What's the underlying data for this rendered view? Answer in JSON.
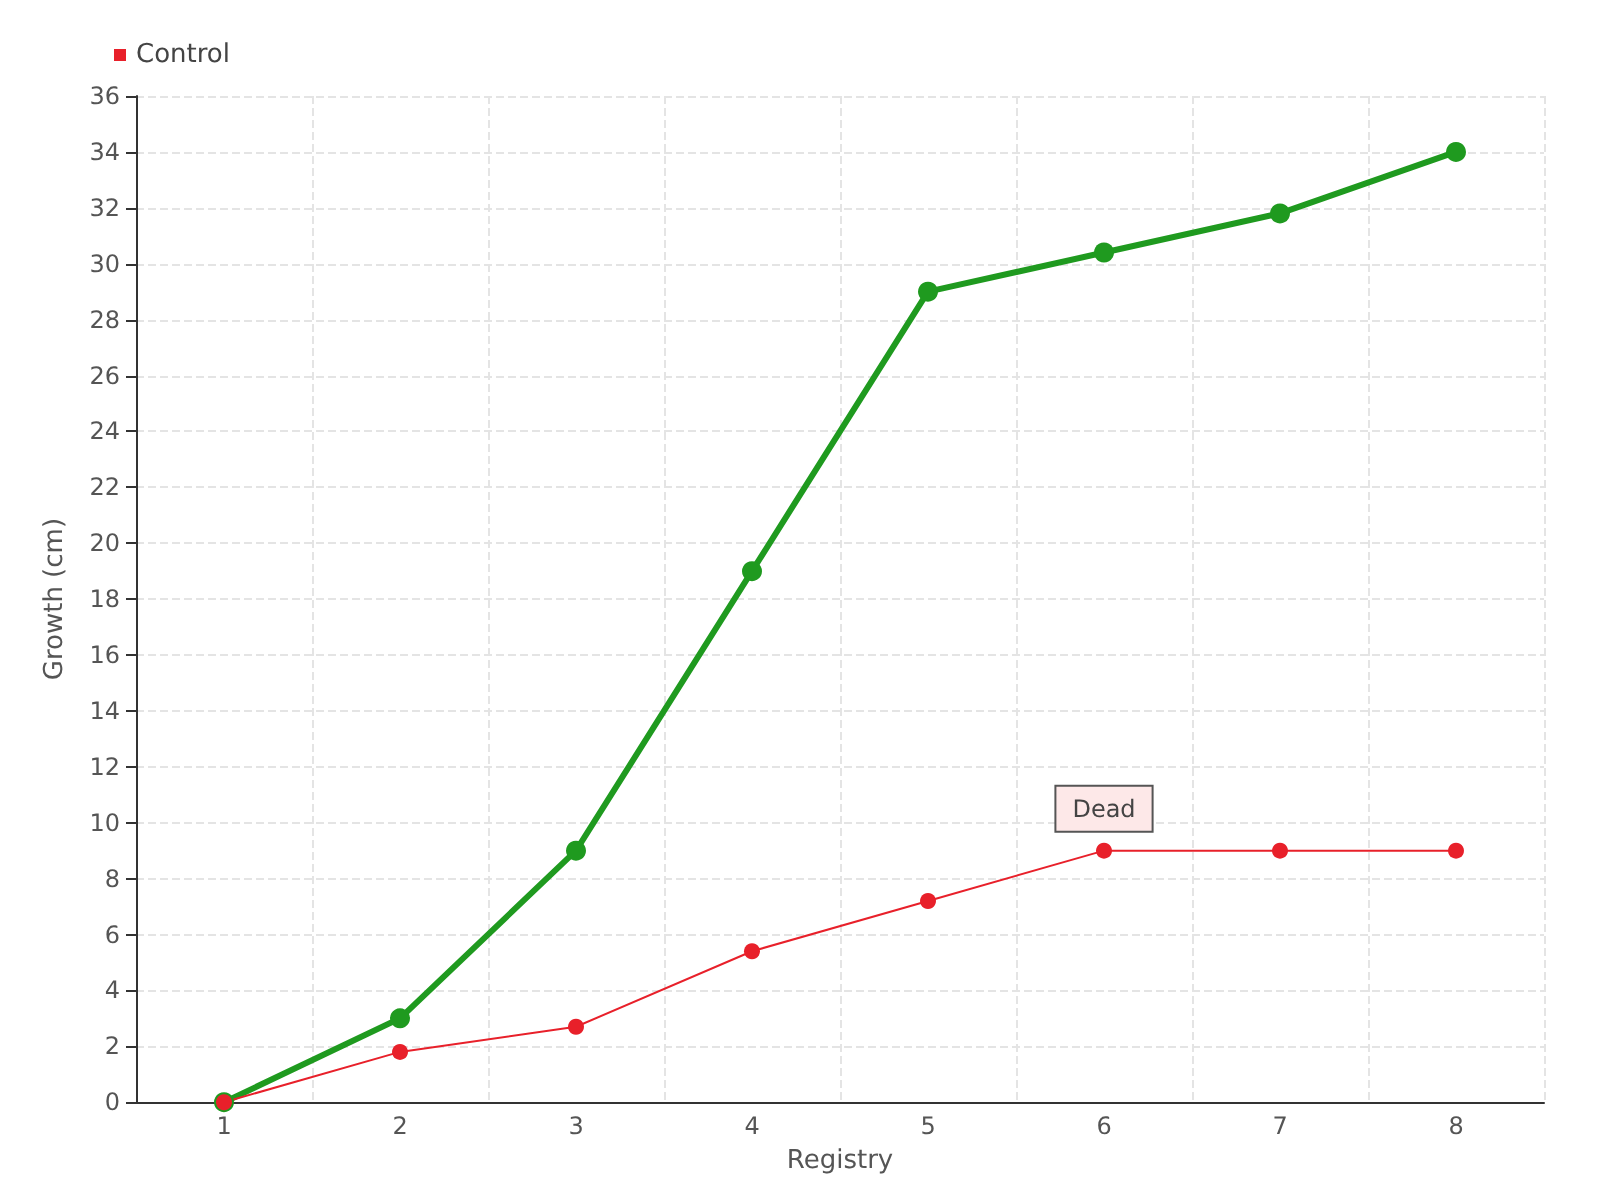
{
  "chart_data": {
    "type": "line",
    "xlabel": "Registry",
    "ylabel": "Growth (cm)",
    "categories": [
      "1",
      "2",
      "3",
      "4",
      "5",
      "6",
      "7",
      "8"
    ],
    "series": [
      {
        "color": "#1f9a1f",
        "values": [
          0,
          3,
          9,
          19,
          29,
          30.4,
          31.8,
          34
        ]
      },
      {
        "name": "Control",
        "color": "#e8202a",
        "values": [
          0,
          1.8,
          2.7,
          5.4,
          7.2,
          9,
          9,
          9
        ]
      }
    ],
    "ylim": [
      0,
      36
    ],
    "yticks": [
      0,
      2,
      4,
      6,
      8,
      10,
      12,
      14,
      16,
      18,
      20,
      22,
      24,
      26,
      28,
      30,
      32,
      34,
      36
    ],
    "annotations": [
      {
        "text": "Dead",
        "x": "6",
        "y": 9
      }
    ],
    "grid": true,
    "legend": "top left",
    "marker": "circle",
    "line_style": "solid"
  }
}
